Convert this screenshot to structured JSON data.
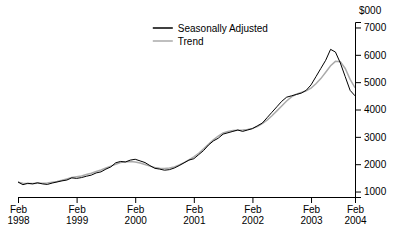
{
  "chart_data": {
    "type": "line",
    "ylabel": "$000",
    "categories": [
      "Feb\n1998",
      null,
      null,
      null,
      null,
      null,
      null,
      null,
      null,
      null,
      null,
      null,
      "Feb\n1999",
      null,
      null,
      null,
      null,
      null,
      null,
      null,
      null,
      null,
      null,
      null,
      "Feb\n2000",
      null,
      null,
      null,
      null,
      null,
      null,
      null,
      null,
      null,
      null,
      null,
      "Feb\n2001",
      null,
      null,
      null,
      null,
      null,
      null,
      null,
      null,
      null,
      null,
      null,
      "Feb\n2002",
      null,
      null,
      null,
      null,
      null,
      null,
      null,
      null,
      null,
      null,
      null,
      "Feb\n2003",
      null,
      null,
      null,
      null,
      null,
      null,
      null,
      null,
      "Feb\n2004"
    ],
    "series": [
      {
        "name": "Seasonally Adjusted",
        "color": "#000000",
        "values": [
          1350,
          1250,
          1300,
          1280,
          1320,
          1280,
          1260,
          1310,
          1350,
          1390,
          1420,
          1500,
          1480,
          1510,
          1560,
          1600,
          1680,
          1720,
          1820,
          1900,
          2050,
          2100,
          2080,
          2150,
          2180,
          2120,
          2060,
          1950,
          1850,
          1820,
          1780,
          1800,
          1860,
          1950,
          2050,
          2150,
          2200,
          2350,
          2500,
          2700,
          2850,
          2950,
          3100,
          3150,
          3200,
          3250,
          3200,
          3250,
          3300,
          3400,
          3500,
          3700,
          3900,
          4100,
          4300,
          4450,
          4500,
          4550,
          4600,
          4700,
          4900,
          5200,
          5500,
          5800,
          6200,
          6100,
          5700,
          5200,
          4700,
          4500
        ]
      },
      {
        "name": "Trend",
        "color": "#aaaaaa",
        "values": [
          1340,
          1300,
          1290,
          1290,
          1300,
          1300,
          1310,
          1340,
          1370,
          1410,
          1460,
          1510,
          1540,
          1570,
          1620,
          1670,
          1730,
          1790,
          1860,
          1930,
          2000,
          2060,
          2090,
          2100,
          2080,
          2040,
          1990,
          1930,
          1880,
          1850,
          1840,
          1860,
          1900,
          1970,
          2060,
          2160,
          2270,
          2400,
          2560,
          2730,
          2890,
          3030,
          3140,
          3200,
          3230,
          3240,
          3250,
          3270,
          3310,
          3380,
          3480,
          3610,
          3770,
          3950,
          4130,
          4310,
          4460,
          4560,
          4620,
          4680,
          4780,
          4940,
          5130,
          5360,
          5600,
          5760,
          5750,
          5500,
          5100,
          4800
        ]
      }
    ],
    "ylim": [
      800,
      7200
    ],
    "yticks": [
      1000,
      2000,
      3000,
      4000,
      5000,
      6000,
      7000
    ],
    "grid": false,
    "legend": "top"
  }
}
